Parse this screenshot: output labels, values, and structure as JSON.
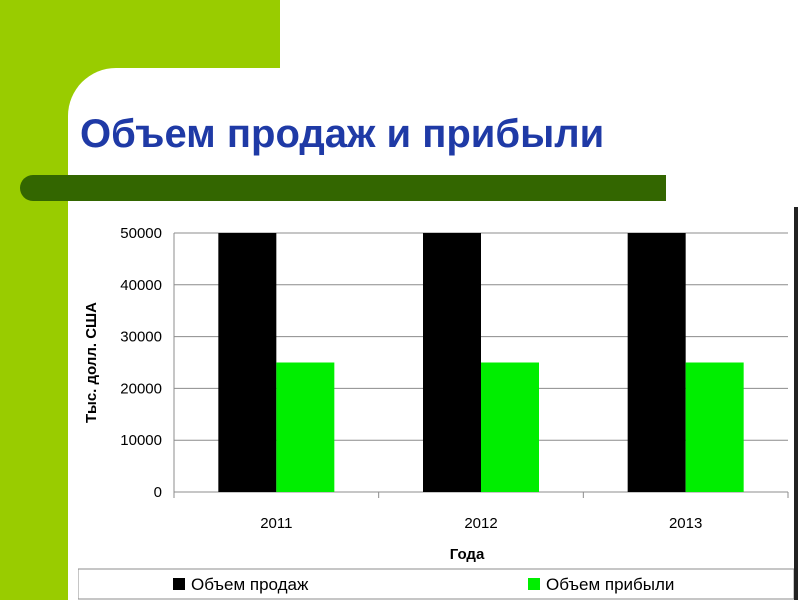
{
  "slide": {
    "title": "Объем продаж и прибыли",
    "colors": {
      "accent_green": "#99cc00",
      "dark_green_bar": "#336600",
      "title_blue": "#1f3aa6"
    }
  },
  "chart_data": {
    "type": "bar",
    "categories": [
      "2011",
      "2012",
      "2013"
    ],
    "series": [
      {
        "name": "Объем продаж",
        "values": [
          50000,
          50000,
          50000
        ],
        "color": "#000000"
      },
      {
        "name": "Объем прибыли",
        "values": [
          25000,
          25000,
          25000
        ],
        "color": "#00ee00"
      }
    ],
    "xlabel": "Года",
    "ylabel": "Тыс. долл. США",
    "ylim": [
      0,
      50000
    ],
    "yticks": [
      "0",
      "10000",
      "20000",
      "30000",
      "40000",
      "50000"
    ],
    "grid": true,
    "legend": "bottom"
  }
}
